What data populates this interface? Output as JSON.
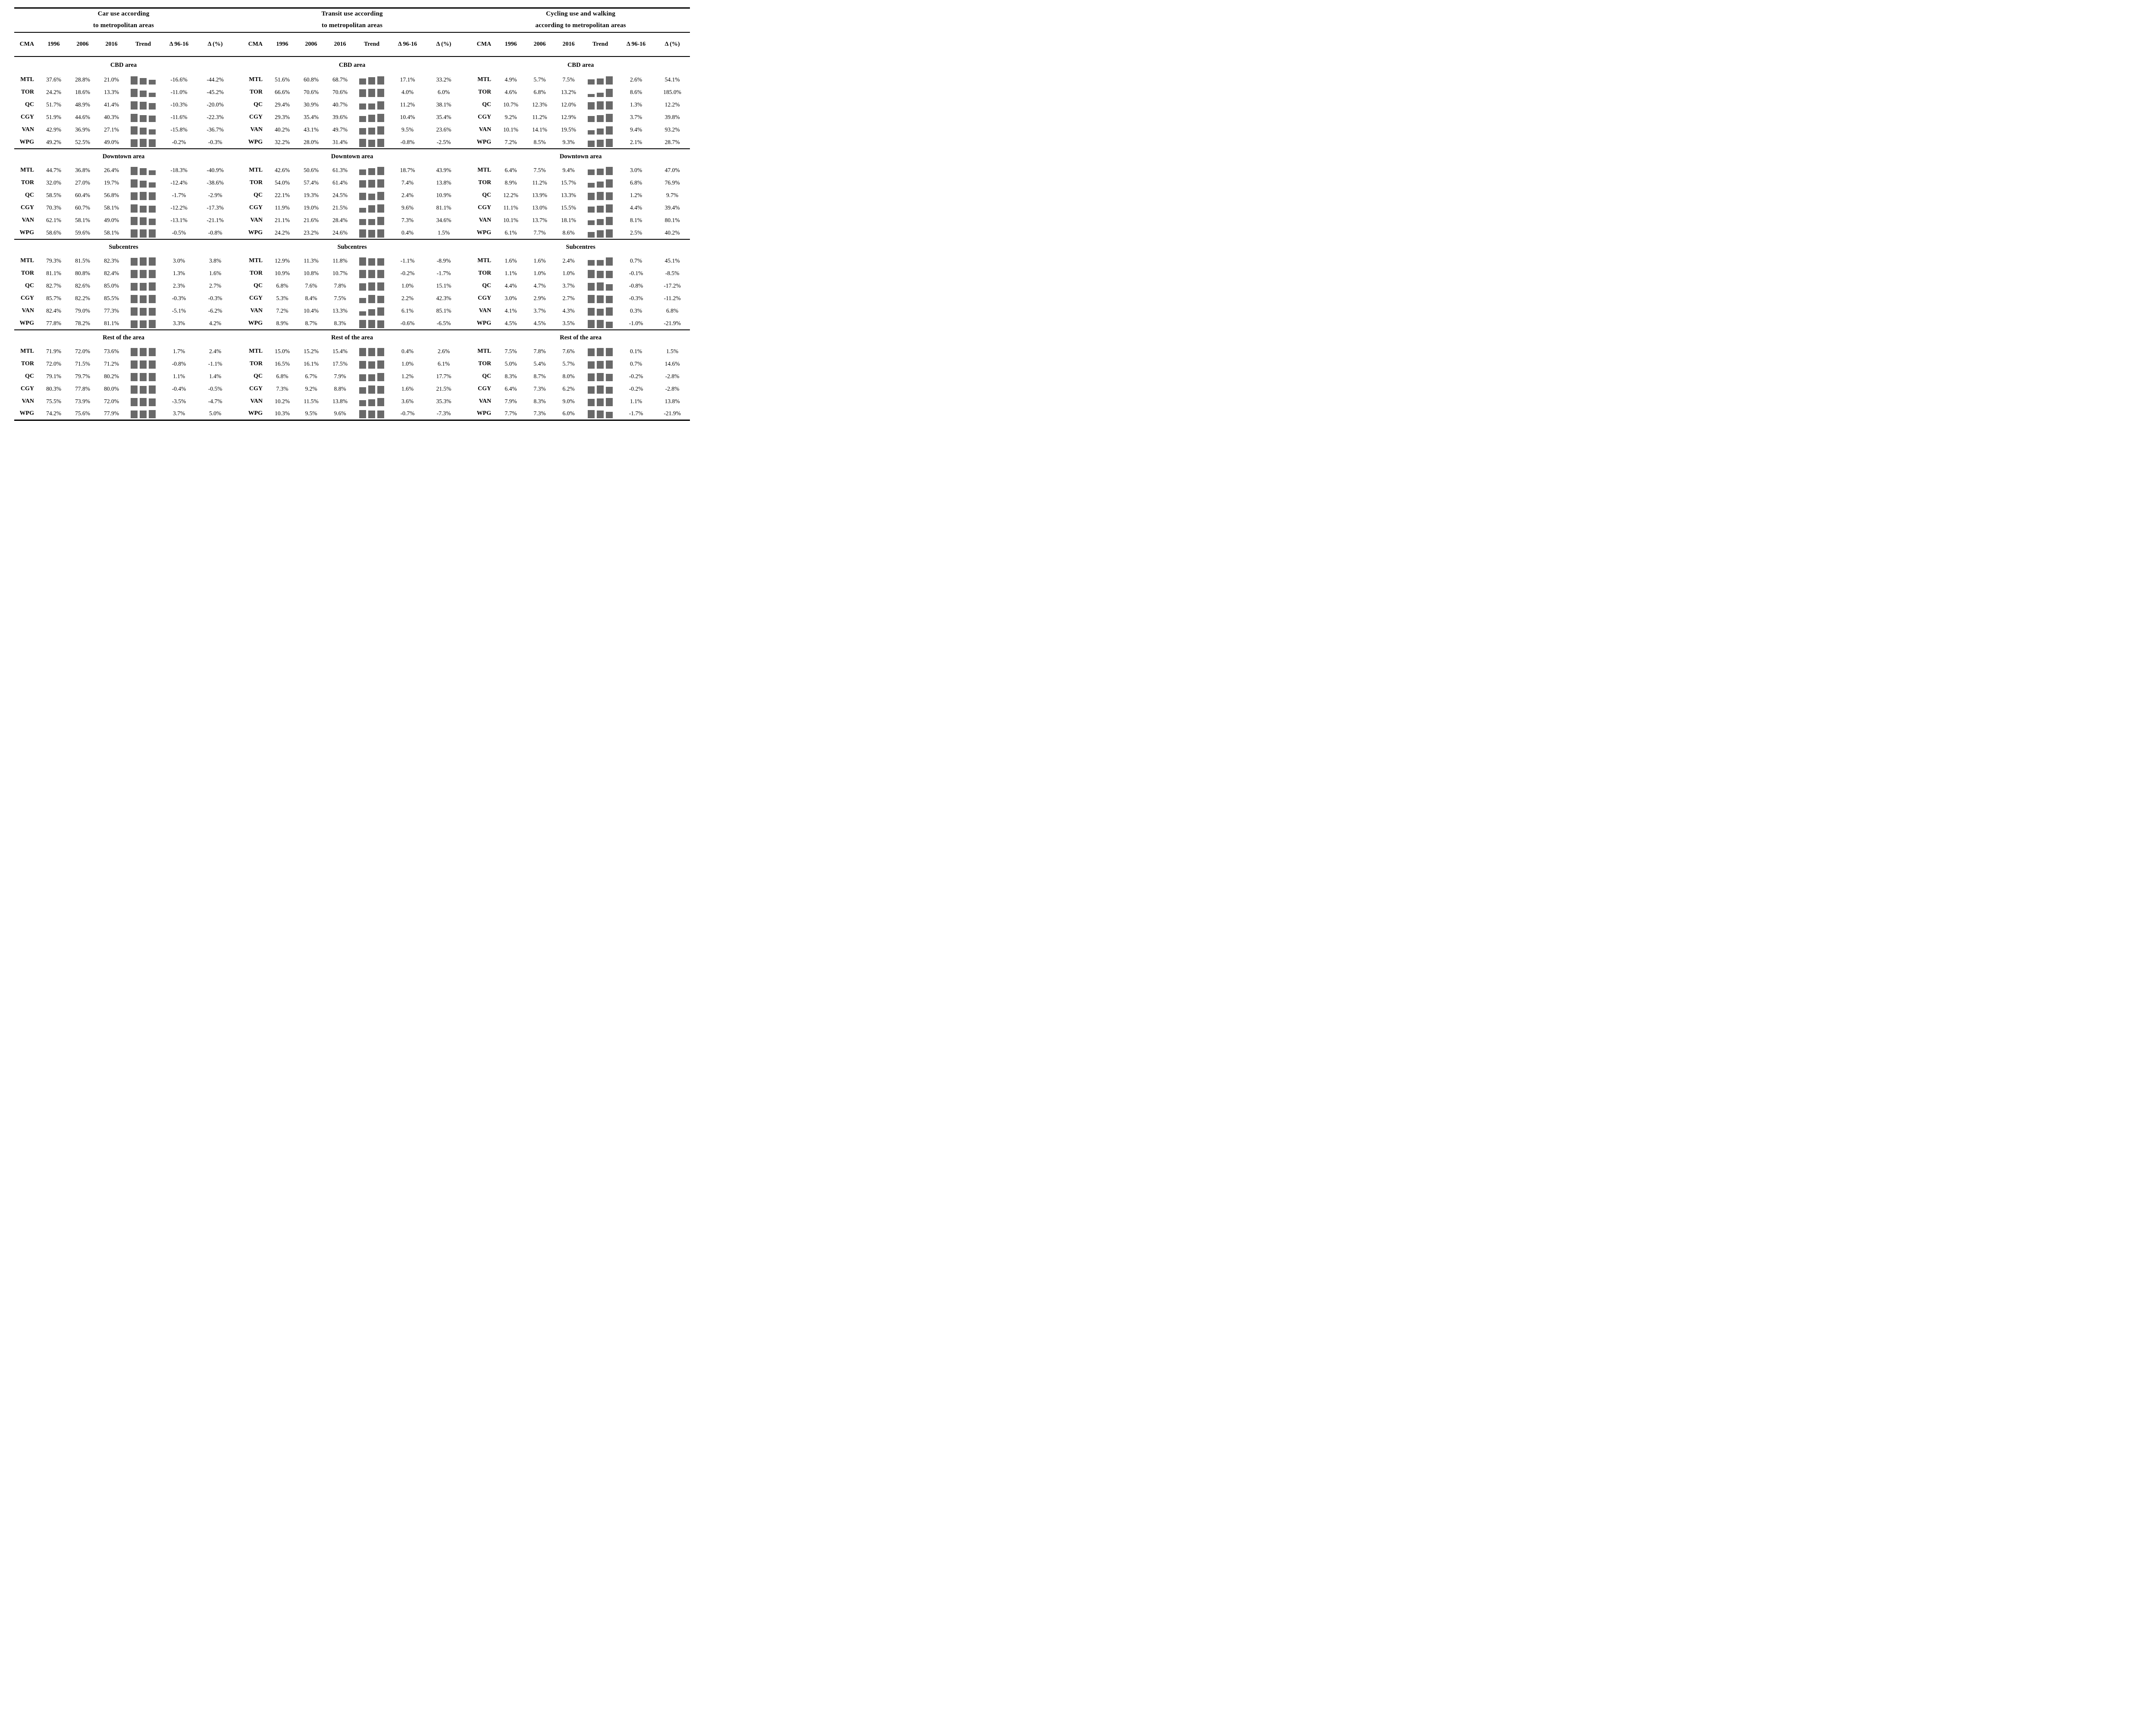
{
  "table": {
    "groups": [
      {
        "id": "car",
        "title": [
          "Car use according",
          "to metropolitan areas"
        ]
      },
      {
        "id": "transit",
        "title": [
          "Transit use according",
          "to metropolitan areas"
        ]
      },
      {
        "id": "cycling",
        "title": [
          "Cycling use and walking",
          "according to metropolitan areas"
        ]
      }
    ],
    "columns": [
      "CMA",
      "1996",
      "2006",
      "2016",
      "Trend",
      "Δ 96-16",
      "Δ (%)"
    ],
    "modes": [
      "car",
      "transit",
      "cycling"
    ],
    "style": {
      "trend_bar_color": "#696969",
      "rule_color": "#000000",
      "text_color": "#000000",
      "background": "#ffffff"
    },
    "areas": [
      {
        "name": "CBD area",
        "rows": [
          {
            "cma": "MTL",
            "car": {
              "values": [
                37.6,
                28.8,
                21.0
              ],
              "delta": "-16.6%",
              "delta_pct": "-44.2%"
            },
            "transit": {
              "values": [
                51.6,
                60.8,
                68.7
              ],
              "delta": "17.1%",
              "delta_pct": "33.2%"
            },
            "cycling": {
              "values": [
                4.9,
                5.7,
                7.5
              ],
              "delta": "2.6%",
              "delta_pct": "54.1%"
            }
          },
          {
            "cma": "TOR",
            "car": {
              "values": [
                24.2,
                18.6,
                13.3
              ],
              "delta": "-11.0%",
              "delta_pct": "-45.2%"
            },
            "transit": {
              "values": [
                66.6,
                70.6,
                70.6
              ],
              "delta": "4.0%",
              "delta_pct": "6.0%"
            },
            "cycling": {
              "values": [
                4.6,
                6.8,
                13.2
              ],
              "delta": "8.6%",
              "delta_pct": "185.0%"
            }
          },
          {
            "cma": "QC",
            "car": {
              "values": [
                51.7,
                48.9,
                41.4
              ],
              "delta": "-10.3%",
              "delta_pct": "-20.0%"
            },
            "transit": {
              "values": [
                29.4,
                30.9,
                40.7
              ],
              "delta": "11.2%",
              "delta_pct": "38.1%"
            },
            "cycling": {
              "values": [
                10.7,
                12.3,
                12.0
              ],
              "delta": "1.3%",
              "delta_pct": "12.2%"
            }
          },
          {
            "cma": "CGY",
            "car": {
              "values": [
                51.9,
                44.6,
                40.3
              ],
              "delta": "-11.6%",
              "delta_pct": "-22.3%"
            },
            "transit": {
              "values": [
                29.3,
                35.4,
                39.6
              ],
              "delta": "10.4%",
              "delta_pct": "35.4%"
            },
            "cycling": {
              "values": [
                9.2,
                11.2,
                12.9
              ],
              "delta": "3.7%",
              "delta_pct": "39.8%"
            }
          },
          {
            "cma": "VAN",
            "car": {
              "values": [
                42.9,
                36.9,
                27.1
              ],
              "delta": "-15.8%",
              "delta_pct": "-36.7%"
            },
            "transit": {
              "values": [
                40.2,
                43.1,
                49.7
              ],
              "delta": "9.5%",
              "delta_pct": "23.6%"
            },
            "cycling": {
              "values": [
                10.1,
                14.1,
                19.5
              ],
              "delta": "9.4%",
              "delta_pct": "93.2%"
            }
          },
          {
            "cma": "WPG",
            "car": {
              "values": [
                49.2,
                52.5,
                49.0
              ],
              "delta": "-0.2%",
              "delta_pct": "-0.3%"
            },
            "transit": {
              "values": [
                32.2,
                28.0,
                31.4
              ],
              "delta": "-0.8%",
              "delta_pct": "-2.5%"
            },
            "cycling": {
              "values": [
                7.2,
                8.5,
                9.3
              ],
              "delta": "2.1%",
              "delta_pct": "28.7%"
            }
          }
        ]
      },
      {
        "name": "Downtown area",
        "rows": [
          {
            "cma": "MTL",
            "car": {
              "values": [
                44.7,
                36.8,
                26.4
              ],
              "delta": "-18.3%",
              "delta_pct": "-40.9%"
            },
            "transit": {
              "values": [
                42.6,
                50.6,
                61.3
              ],
              "delta": "18.7%",
              "delta_pct": "43.9%"
            },
            "cycling": {
              "values": [
                6.4,
                7.5,
                9.4
              ],
              "delta": "3.0%",
              "delta_pct": "47.0%"
            }
          },
          {
            "cma": "TOR",
            "car": {
              "values": [
                32.0,
                27.0,
                19.7
              ],
              "delta": "-12.4%",
              "delta_pct": "-38.6%"
            },
            "transit": {
              "values": [
                54.0,
                57.4,
                61.4
              ],
              "delta": "7.4%",
              "delta_pct": "13.8%"
            },
            "cycling": {
              "values": [
                8.9,
                11.2,
                15.7
              ],
              "delta": "6.8%",
              "delta_pct": "76.9%"
            }
          },
          {
            "cma": "QC",
            "car": {
              "values": [
                58.5,
                60.4,
                56.8
              ],
              "delta": "-1.7%",
              "delta_pct": "-2.9%"
            },
            "transit": {
              "values": [
                22.1,
                19.3,
                24.5
              ],
              "delta": "2.4%",
              "delta_pct": "10.9%"
            },
            "cycling": {
              "values": [
                12.2,
                13.9,
                13.3
              ],
              "delta": "1.2%",
              "delta_pct": "9.7%"
            }
          },
          {
            "cma": "CGY",
            "car": {
              "values": [
                70.3,
                60.7,
                58.1
              ],
              "delta": "-12.2%",
              "delta_pct": "-17.3%"
            },
            "transit": {
              "values": [
                11.9,
                19.0,
                21.5
              ],
              "delta": "9.6%",
              "delta_pct": "81.1%"
            },
            "cycling": {
              "values": [
                11.1,
                13.0,
                15.5
              ],
              "delta": "4.4%",
              "delta_pct": "39.4%"
            }
          },
          {
            "cma": "VAN",
            "car": {
              "values": [
                62.1,
                58.1,
                49.0
              ],
              "delta": "-13.1%",
              "delta_pct": "-21.1%"
            },
            "transit": {
              "values": [
                21.1,
                21.6,
                28.4
              ],
              "delta": "7.3%",
              "delta_pct": "34.6%"
            },
            "cycling": {
              "values": [
                10.1,
                13.7,
                18.1
              ],
              "delta": "8.1%",
              "delta_pct": "80.1%"
            }
          },
          {
            "cma": "WPG",
            "car": {
              "values": [
                58.6,
                59.6,
                58.1
              ],
              "delta": "-0.5%",
              "delta_pct": "-0.8%"
            },
            "transit": {
              "values": [
                24.2,
                23.2,
                24.6
              ],
              "delta": "0.4%",
              "delta_pct": "1.5%"
            },
            "cycling": {
              "values": [
                6.1,
                7.7,
                8.6
              ],
              "delta": "2.5%",
              "delta_pct": "40.2%"
            }
          }
        ]
      },
      {
        "name": "Subcentres",
        "rows": [
          {
            "cma": "MTL",
            "car": {
              "values": [
                79.3,
                81.5,
                82.3
              ],
              "delta": "3.0%",
              "delta_pct": "3.8%"
            },
            "transit": {
              "values": [
                12.9,
                11.3,
                11.8
              ],
              "delta": "-1.1%",
              "delta_pct": "-8.9%"
            },
            "cycling": {
              "values": [
                1.6,
                1.6,
                2.4
              ],
              "delta": "0.7%",
              "delta_pct": "45.1%"
            }
          },
          {
            "cma": "TOR",
            "car": {
              "values": [
                81.1,
                80.8,
                82.4
              ],
              "delta": "1.3%",
              "delta_pct": "1.6%"
            },
            "transit": {
              "values": [
                10.9,
                10.8,
                10.7
              ],
              "delta": "-0.2%",
              "delta_pct": "-1.7%"
            },
            "cycling": {
              "values": [
                1.1,
                1.0,
                1.0
              ],
              "delta": "-0.1%",
              "delta_pct": "-8.5%"
            }
          },
          {
            "cma": "QC",
            "car": {
              "values": [
                82.7,
                82.6,
                85.0
              ],
              "delta": "2.3%",
              "delta_pct": "2.7%"
            },
            "transit": {
              "values": [
                6.8,
                7.6,
                7.8
              ],
              "delta": "1.0%",
              "delta_pct": "15.1%"
            },
            "cycling": {
              "values": [
                4.4,
                4.7,
                3.7
              ],
              "delta": "-0.8%",
              "delta_pct": "-17.2%"
            }
          },
          {
            "cma": "CGY",
            "car": {
              "values": [
                85.7,
                82.2,
                85.5
              ],
              "delta": "-0.3%",
              "delta_pct": "-0.3%"
            },
            "transit": {
              "values": [
                5.3,
                8.4,
                7.5
              ],
              "delta": "2.2%",
              "delta_pct": "42.3%"
            },
            "cycling": {
              "values": [
                3.0,
                2.9,
                2.7
              ],
              "delta": "-0.3%",
              "delta_pct": "-11.2%"
            }
          },
          {
            "cma": "VAN",
            "car": {
              "values": [
                82.4,
                79.0,
                77.3
              ],
              "delta": "-5.1%",
              "delta_pct": "-6.2%"
            },
            "transit": {
              "values": [
                7.2,
                10.4,
                13.3
              ],
              "delta": "6.1%",
              "delta_pct": "85.1%"
            },
            "cycling": {
              "values": [
                4.1,
                3.7,
                4.3
              ],
              "delta": "0.3%",
              "delta_pct": "6.8%"
            }
          },
          {
            "cma": "WPG",
            "car": {
              "values": [
                77.8,
                78.2,
                81.1
              ],
              "delta": "3.3%",
              "delta_pct": "4.2%"
            },
            "transit": {
              "values": [
                8.9,
                8.7,
                8.3
              ],
              "delta": "-0.6%",
              "delta_pct": "-6.5%"
            },
            "cycling": {
              "values": [
                4.5,
                4.5,
                3.5
              ],
              "delta": "-1.0%",
              "delta_pct": "-21.9%"
            }
          }
        ]
      },
      {
        "name": "Rest of the area",
        "rows": [
          {
            "cma": "MTL",
            "car": {
              "values": [
                71.9,
                72.0,
                73.6
              ],
              "delta": "1.7%",
              "delta_pct": "2.4%"
            },
            "transit": {
              "values": [
                15.0,
                15.2,
                15.4
              ],
              "delta": "0.4%",
              "delta_pct": "2.6%"
            },
            "cycling": {
              "values": [
                7.5,
                7.8,
                7.6
              ],
              "delta": "0.1%",
              "delta_pct": "1.5%"
            }
          },
          {
            "cma": "TOR",
            "car": {
              "values": [
                72.0,
                71.5,
                71.2
              ],
              "delta": "-0.8%",
              "delta_pct": "-1.1%"
            },
            "transit": {
              "values": [
                16.5,
                16.1,
                17.5
              ],
              "delta": "1.0%",
              "delta_pct": "6.1%"
            },
            "cycling": {
              "values": [
                5.0,
                5.4,
                5.7
              ],
              "delta": "0.7%",
              "delta_pct": "14.6%"
            }
          },
          {
            "cma": "QC",
            "car": {
              "values": [
                79.1,
                79.7,
                80.2
              ],
              "delta": "1.1%",
              "delta_pct": "1.4%"
            },
            "transit": {
              "values": [
                6.8,
                6.7,
                7.9
              ],
              "delta": "1.2%",
              "delta_pct": "17.7%"
            },
            "cycling": {
              "values": [
                8.3,
                8.7,
                8.0
              ],
              "delta": "-0.2%",
              "delta_pct": "-2.8%"
            }
          },
          {
            "cma": "CGY",
            "car": {
              "values": [
                80.3,
                77.8,
                80.0
              ],
              "delta": "-0.4%",
              "delta_pct": "-0.5%"
            },
            "transit": {
              "values": [
                7.3,
                9.2,
                8.8
              ],
              "delta": "1.6%",
              "delta_pct": "21.5%"
            },
            "cycling": {
              "values": [
                6.4,
                7.3,
                6.2
              ],
              "delta": "-0.2%",
              "delta_pct": "-2.8%"
            }
          },
          {
            "cma": "VAN",
            "car": {
              "values": [
                75.5,
                73.9,
                72.0
              ],
              "delta": "-3.5%",
              "delta_pct": "-4.7%"
            },
            "transit": {
              "values": [
                10.2,
                11.5,
                13.8
              ],
              "delta": "3.6%",
              "delta_pct": "35.3%"
            },
            "cycling": {
              "values": [
                7.9,
                8.3,
                9.0
              ],
              "delta": "1.1%",
              "delta_pct": "13.8%"
            }
          },
          {
            "cma": "WPG",
            "car": {
              "values": [
                74.2,
                75.6,
                77.9
              ],
              "delta": "3.7%",
              "delta_pct": "5.0%"
            },
            "transit": {
              "values": [
                10.3,
                9.5,
                9.6
              ],
              "delta": "-0.7%",
              "delta_pct": "-7.3%"
            },
            "cycling": {
              "values": [
                7.7,
                7.3,
                6.0
              ],
              "delta": "-1.7%",
              "delta_pct": "-21.9%"
            }
          }
        ]
      }
    ]
  }
}
